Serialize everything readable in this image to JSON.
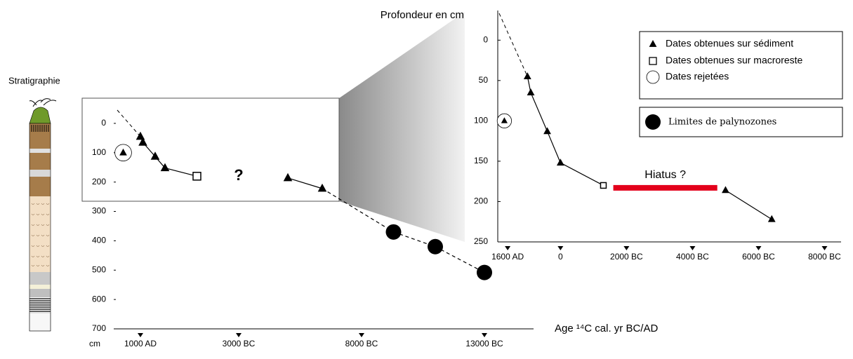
{
  "figure": {
    "label": "Stratigraphie"
  },
  "chart_data": [
    {
      "type": "scatter",
      "xlabel": "Age ¹⁴C cal. yr BC/AD",
      "y_unit": "cm",
      "annotation": "?",
      "legend": "top-right",
      "xlim": [
        2000,
        -15000
      ],
      "ylim": [
        700,
        -50
      ],
      "xticks": [
        {
          "value": 1000,
          "label": "1000 AD"
        },
        {
          "value": -3000,
          "label": "3000 BC"
        },
        {
          "value": -8000,
          "label": "8000 BC"
        },
        {
          "value": -13000,
          "label": "13000 BC"
        }
      ],
      "yticks": [
        0,
        100,
        200,
        300,
        400,
        500,
        600,
        700
      ],
      "series": [
        {
          "name": "Dates obtenues sur sédiment",
          "marker": "triangle",
          "color": "#000000",
          "x": [
            1000,
            900,
            400,
            0,
            -5000,
            -6400
          ],
          "values": [
            45,
            65,
            113,
            152,
            186,
            222
          ]
        },
        {
          "name": "Dates obtenues sur macroreste",
          "marker": "square",
          "color": "#000000",
          "x": [
            -1300
          ],
          "values": [
            180
          ]
        },
        {
          "name": "Dates rejetées",
          "marker": "circled-triangle",
          "color": "#000000",
          "x": [
            1700
          ],
          "values": [
            100
          ]
        },
        {
          "name": "Limites de palynozones",
          "marker": "disc",
          "color": "#000000",
          "x": [
            -9300,
            -11000,
            -13000
          ],
          "values": [
            370,
            420,
            508
          ]
        }
      ]
    },
    {
      "type": "scatter",
      "title": "Profondeur en cm",
      "xlim": [
        1900,
        -8500
      ],
      "ylim": [
        250,
        -35
      ],
      "xticks": [
        {
          "value": 1600,
          "label": "1600 AD"
        },
        0,
        {
          "value": -2000,
          "label": "2000 BC"
        },
        {
          "value": -4000,
          "label": "4000 BC"
        },
        {
          "value": -6000,
          "label": "6000 BC"
        },
        {
          "value": -8000,
          "label": "8000 BC"
        }
      ],
      "yticks": [
        0,
        50,
        100,
        150,
        200,
        250
      ],
      "hiatus": {
        "label": "Hiatus ?",
        "x": [
          -1600,
          -4750
        ],
        "value": 183,
        "color": "#e3001b"
      },
      "series": [
        {
          "marker": "triangle",
          "color": "#000000",
          "x": [
            1000,
            900,
            400,
            0,
            -5000,
            -6400
          ],
          "values": [
            45,
            65,
            113,
            152,
            186,
            222
          ]
        },
        {
          "marker": "square",
          "color": "#000000",
          "x": [
            -1300
          ],
          "values": [
            180
          ]
        },
        {
          "marker": "circled-triangle",
          "color": "#000000",
          "x": [
            1700
          ],
          "values": [
            100
          ]
        }
      ]
    }
  ]
}
